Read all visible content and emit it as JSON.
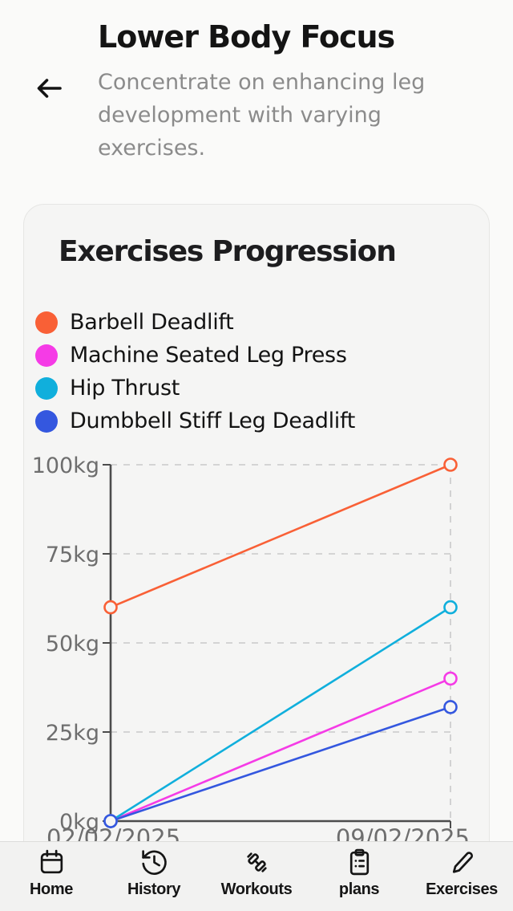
{
  "header": {
    "title": "Lower Body Focus",
    "subtitle": "Concentrate on enhancing leg development with varying exercises.",
    "back_icon": "arrow-left-icon"
  },
  "card": {
    "heading": "Exercises Progression"
  },
  "chart_data": {
    "type": "line",
    "title": "Exercises Progression",
    "x": [
      "02/02/2025",
      "09/02/2025"
    ],
    "unit": "kg",
    "ylim": [
      0,
      100
    ],
    "yticks": [
      0,
      25,
      50,
      75,
      100
    ],
    "grid": true,
    "legend_position": "top-left",
    "marker": "open-circle",
    "series": [
      {
        "name": "Barbell Deadlift",
        "color": "#f96036",
        "values": [
          60,
          100
        ]
      },
      {
        "name": "Machine Seated Leg Press",
        "color": "#f53be6",
        "values": [
          0,
          40
        ]
      },
      {
        "name": "Hip Thrust",
        "color": "#10afdc",
        "values": [
          0,
          60
        ]
      },
      {
        "name": "Dumbbell Stiff Leg Deadlift",
        "color": "#3457df",
        "values": [
          0,
          32
        ]
      }
    ]
  },
  "nav": {
    "items": [
      {
        "label": "Home",
        "icon": "calendar-icon"
      },
      {
        "label": "History",
        "icon": "history-icon"
      },
      {
        "label": "Workouts",
        "icon": "dumbbell-icon"
      },
      {
        "label": "plans",
        "icon": "clipboard-icon"
      },
      {
        "label": "Exercises",
        "icon": "pencil-icon"
      }
    ]
  },
  "colors": {
    "page_bg": "#fafaf9",
    "card_bg": "#f5f5f4",
    "nav_bg": "#f2f2f1",
    "axis": "#4c4c4c",
    "gridline": "#c9c9c9",
    "muted_text": "#8b8b8b"
  }
}
